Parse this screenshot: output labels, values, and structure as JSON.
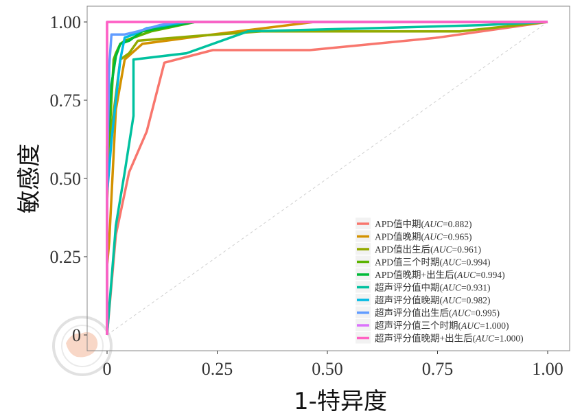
{
  "chart_data": {
    "type": "line",
    "title": "",
    "xlabel": "1-特异度",
    "ylabel": "敏感度",
    "xlim": [
      0,
      1
    ],
    "ylim": [
      0,
      1
    ],
    "x_ticks": [
      "0",
      "0.25",
      "0.50",
      "0.75",
      "1.00"
    ],
    "y_ticks": [
      "0",
      "0.25",
      "0.50",
      "0.75",
      "1.00"
    ],
    "reference_line": "diagonal",
    "legend_position": "bottom-right",
    "series": [
      {
        "name_main": "APD值中期(",
        "name_auc": "AUC",
        "name_value": "=0.882)",
        "color": "#F8766D",
        "points": [
          [
            0,
            0
          ],
          [
            0.02,
            0.32
          ],
          [
            0.05,
            0.52
          ],
          [
            0.09,
            0.65
          ],
          [
            0.13,
            0.87
          ],
          [
            0.24,
            0.91
          ],
          [
            0.46,
            0.91
          ],
          [
            0.75,
            0.95
          ],
          [
            1,
            1
          ]
        ]
      },
      {
        "name_main": "APD值晚期(",
        "name_auc": "AUC",
        "name_value": "=0.965)",
        "color": "#D39200",
        "points": [
          [
            0,
            0
          ],
          [
            0,
            0.22
          ],
          [
            0.005,
            0.3
          ],
          [
            0.02,
            0.72
          ],
          [
            0.04,
            0.88
          ],
          [
            0.08,
            0.93
          ],
          [
            0.24,
            0.96
          ],
          [
            0.47,
            1
          ],
          [
            1,
            1
          ]
        ]
      },
      {
        "name_main": "APD值出生后(",
        "name_auc": "AUC",
        "name_value": "=0.961)",
        "color": "#93AA00",
        "points": [
          [
            0,
            0
          ],
          [
            0,
            0.42
          ],
          [
            0.005,
            0.6
          ],
          [
            0.03,
            0.88
          ],
          [
            0.05,
            0.9
          ],
          [
            0.07,
            0.94
          ],
          [
            0.2,
            0.955
          ],
          [
            0.35,
            0.97
          ],
          [
            0.8,
            0.97
          ],
          [
            1,
            1
          ]
        ]
      },
      {
        "name_main": "APD值三个时期(",
        "name_auc": "AUC",
        "name_value": "=0.994)",
        "color": "#5BB300",
        "points": [
          [
            0,
            0
          ],
          [
            0,
            0.58
          ],
          [
            0.005,
            0.62
          ],
          [
            0.015,
            0.88
          ],
          [
            0.02,
            0.9
          ],
          [
            0.03,
            0.93
          ],
          [
            0.04,
            0.94
          ],
          [
            0.06,
            0.95
          ],
          [
            0.1,
            0.97
          ],
          [
            0.2,
            1
          ],
          [
            1,
            1
          ]
        ]
      },
      {
        "name_main": "APD值晚期+出生后(",
        "name_auc": "AUC",
        "name_value": "=0.994)",
        "color": "#00BA38",
        "points": [
          [
            0,
            0
          ],
          [
            0,
            0.6
          ],
          [
            0.01,
            0.8
          ],
          [
            0.02,
            0.89
          ],
          [
            0.03,
            0.93
          ],
          [
            0.05,
            0.94
          ],
          [
            0.08,
            0.97
          ],
          [
            0.2,
            1
          ],
          [
            1,
            1
          ]
        ]
      },
      {
        "name_main": "超声评分值中期(",
        "name_auc": "AUC",
        "name_value": "=0.931)",
        "color": "#00C19F",
        "points": [
          [
            0,
            0
          ],
          [
            0.02,
            0.35
          ],
          [
            0.04,
            0.52
          ],
          [
            0.06,
            0.7
          ],
          [
            0.06,
            0.88
          ],
          [
            0.18,
            0.9
          ],
          [
            0.32,
            0.97
          ],
          [
            0.6,
            0.98
          ],
          [
            0.85,
            0.99
          ],
          [
            1,
            1
          ]
        ]
      },
      {
        "name_main": "超声评分值晚期(",
        "name_auc": "AUC",
        "name_value": "=0.982)",
        "color": "#00B9E3",
        "points": [
          [
            0,
            0
          ],
          [
            0,
            0.45
          ],
          [
            0.01,
            0.62
          ],
          [
            0.03,
            0.88
          ],
          [
            0.04,
            0.95
          ],
          [
            0.06,
            0.96
          ],
          [
            0.09,
            0.98
          ],
          [
            0.18,
            1
          ],
          [
            1,
            1
          ]
        ]
      },
      {
        "name_main": "超声评分值出生后(",
        "name_auc": "AUC",
        "name_value": "=0.995)",
        "color": "#619CFF",
        "points": [
          [
            0,
            0
          ],
          [
            0,
            0.5
          ],
          [
            0.005,
            0.86
          ],
          [
            0.01,
            0.96
          ],
          [
            0.04,
            0.96
          ],
          [
            0.07,
            0.97
          ],
          [
            0.12,
            0.99
          ],
          [
            0.16,
            1
          ],
          [
            1,
            1
          ]
        ]
      },
      {
        "name_main": "超声评分值三个时期(",
        "name_auc": "AUC",
        "name_value": "=1.000)",
        "color": "#DB72FB",
        "points": [
          [
            0,
            0
          ],
          [
            0,
            1
          ],
          [
            1,
            1
          ]
        ]
      },
      {
        "name_main": "超声评分值晚期+出生后(",
        "name_auc": "AUC",
        "name_value": "=1.000)",
        "color": "#FF61C3",
        "points": [
          [
            0,
            0
          ],
          [
            0,
            1
          ],
          [
            1,
            1
          ]
        ]
      }
    ]
  }
}
